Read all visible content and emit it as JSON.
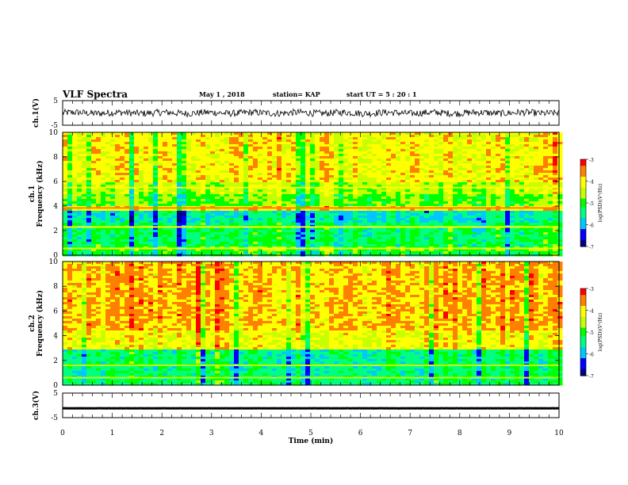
{
  "header": {
    "title": "VLF Spectra",
    "date": "May 1 , 2018",
    "station": "station= KAP",
    "start_ut": "start UT = 5 : 20 : 1"
  },
  "chart_data": [
    {
      "type": "line",
      "ylabel": "ch.1(V)",
      "ylim": [
        -5,
        5
      ],
      "yticks": [
        "5",
        "-5"
      ],
      "xlim": [
        0,
        10
      ],
      "description_values": "noisy waveform mostly between -1.5 and 1.5 V centred near 0",
      "y_center": 0,
      "y_amplitude": 1.4
    },
    {
      "type": "heatmap",
      "ylabel": "ch.1\nFrequency (kHz)",
      "ylim": [
        0,
        10
      ],
      "yticks": [
        "0",
        "2",
        "4",
        "6",
        "8",
        "10"
      ],
      "xlim": [
        0,
        10
      ],
      "colorbar": {
        "label": "log(PSD)(V²/Hz)",
        "range": [
          -7,
          -3
        ],
        "ticks": [
          "-3",
          "-4",
          "-5",
          "-6",
          "-7"
        ]
      },
      "bands": [
        {
          "from": 0.0,
          "to": 0.3,
          "level": -5.2
        },
        {
          "from": 0.3,
          "to": 0.8,
          "level": -4.9
        },
        {
          "from": 0.8,
          "to": 2.6,
          "level": -5.3
        },
        {
          "from": 2.6,
          "to": 3.6,
          "level": -5.7
        },
        {
          "from": 3.6,
          "to": 4.0,
          "level": -4.0
        },
        {
          "from": 4.0,
          "to": 5.0,
          "level": -4.8
        },
        {
          "from": 5.0,
          "to": 6.0,
          "level": -4.5
        },
        {
          "from": 6.0,
          "to": 10.0,
          "level": -4.05
        }
      ],
      "lines": [
        {
          "freq": 3.85,
          "level": -3.6
        },
        {
          "freq": 5.5,
          "level": -4.0
        },
        {
          "freq": 2.3,
          "level": -4.2
        },
        {
          "freq": 0.55,
          "level": -4.0
        }
      ]
    },
    {
      "type": "heatmap",
      "ylabel": "ch.2\nFrequency (kHz)",
      "ylim": [
        0,
        10
      ],
      "yticks": [
        "0",
        "2",
        "4",
        "6",
        "8",
        "10"
      ],
      "xlim": [
        0,
        10
      ],
      "colorbar": {
        "label": "log(PSD)(V²/Hz)",
        "range": [
          -7,
          -3
        ],
        "ticks": [
          "-3",
          "-4",
          "-5",
          "-6",
          "-7"
        ]
      },
      "bands": [
        {
          "from": 0.0,
          "to": 0.3,
          "level": -5.3
        },
        {
          "from": 0.3,
          "to": 2.9,
          "level": -5.4
        },
        {
          "from": 2.9,
          "to": 4.5,
          "level": -4.1
        },
        {
          "from": 4.5,
          "to": 10.0,
          "level": -3.75
        }
      ],
      "lines": [
        {
          "freq": 1.6,
          "level": -4.6
        },
        {
          "freq": 0.6,
          "level": -4.3
        }
      ]
    },
    {
      "type": "line",
      "ylabel": "ch.3(V)",
      "ylim": [
        -5,
        5
      ],
      "yticks": [
        "5",
        "-5"
      ],
      "xlim": [
        0,
        10
      ],
      "y_center": -1.2,
      "y_amplitude": 0.2,
      "xlabel": "Time (min)",
      "xticks": [
        "0",
        "1",
        "2",
        "3",
        "4",
        "5",
        "6",
        "7",
        "8",
        "9",
        "10"
      ]
    }
  ],
  "colors": {
    "scale": [
      "#000080",
      "#0000ff",
      "#00c8ff",
      "#00ff80",
      "#00ff00",
      "#c8ff00",
      "#ffff00",
      "#ff8000",
      "#ff0000",
      "#ffffff"
    ]
  }
}
